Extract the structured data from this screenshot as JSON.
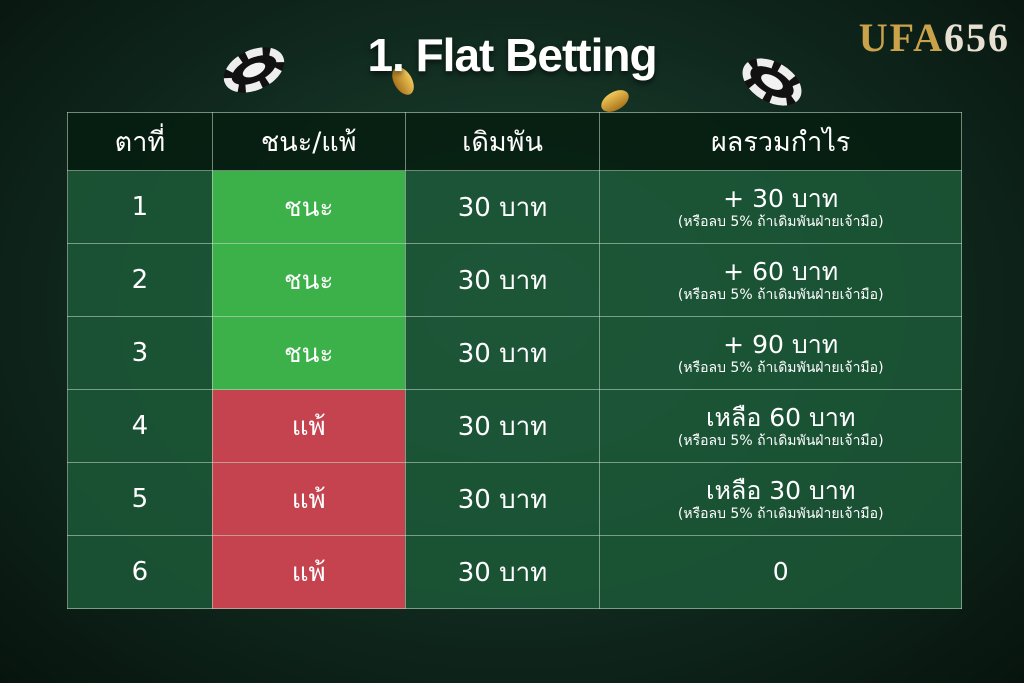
{
  "title": "1. Flat Betting",
  "logo": {
    "part1": "UFA",
    "part2": "656"
  },
  "colors": {
    "win": "#3cb049",
    "lose": "#c5434e",
    "row": "#1c5838",
    "header": "#061e10"
  },
  "table": {
    "headers": [
      "ตาที่",
      "ชนะ/แพ้",
      "เดิมพัน",
      "ผลรวมกำไร"
    ],
    "rows": [
      {
        "round": "1",
        "result": "ชนะ",
        "outcome": "win",
        "bet": "30 บาท",
        "total": "+ 30 บาท",
        "note": "(หรือลบ 5% ถ้าเดิมพันฝ่ายเจ้ามือ)"
      },
      {
        "round": "2",
        "result": "ชนะ",
        "outcome": "win",
        "bet": "30 บาท",
        "total": "+ 60 บาท",
        "note": "(หรือลบ 5% ถ้าเดิมพันฝ่ายเจ้ามือ)"
      },
      {
        "round": "3",
        "result": "ชนะ",
        "outcome": "win",
        "bet": "30 บาท",
        "total": "+ 90 บาท",
        "note": "(หรือลบ 5% ถ้าเดิมพันฝ่ายเจ้ามือ)"
      },
      {
        "round": "4",
        "result": "แพ้",
        "outcome": "lose",
        "bet": "30 บาท",
        "total": "เหลือ 60 บาท",
        "note": "(หรือลบ 5% ถ้าเดิมพันฝ่ายเจ้ามือ)"
      },
      {
        "round": "5",
        "result": "แพ้",
        "outcome": "lose",
        "bet": "30 บาท",
        "total": "เหลือ 30 บาท",
        "note": "(หรือลบ 5% ถ้าเดิมพันฝ่ายเจ้ามือ)"
      },
      {
        "round": "6",
        "result": "แพ้",
        "outcome": "lose",
        "bet": "30 บาท",
        "total": "0",
        "note": ""
      }
    ]
  }
}
